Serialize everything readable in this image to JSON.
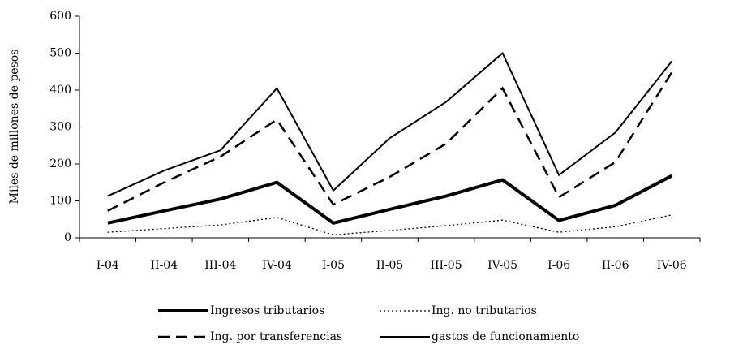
{
  "chart_data": {
    "type": "line",
    "y_label": "Miles de millones de pesos",
    "categories": [
      "I-04",
      "II-04",
      "III-04",
      "IV-04",
      "I-05",
      "II-05",
      "III-05",
      "IV-05",
      "I-06",
      "II-06",
      "IV-06"
    ],
    "series": [
      {
        "name": "Ingresos tributarios",
        "color": "#000000",
        "width": 4,
        "dash": "none",
        "values": [
          40,
          73,
          105,
          150,
          40,
          77,
          113,
          157,
          47,
          88,
          168
        ]
      },
      {
        "name": "Ing. no tributarios",
        "color": "#000000",
        "width": 1.3,
        "dash": "2 3",
        "values": [
          15,
          25,
          35,
          55,
          8,
          20,
          33,
          48,
          15,
          30,
          62
        ]
      },
      {
        "name": "Ing. por transferencias",
        "color": "#000000",
        "width": 2.5,
        "dash": "14 8",
        "values": [
          73,
          150,
          220,
          320,
          90,
          165,
          255,
          405,
          110,
          205,
          448
        ]
      },
      {
        "name": "gastos de funcionamiento",
        "color": "#000000",
        "width": 2,
        "dash": "none",
        "values": [
          113,
          182,
          237,
          405,
          128,
          270,
          368,
          500,
          170,
          285,
          478
        ]
      }
    ],
    "ylim": [
      0,
      600
    ],
    "yticks": [
      0,
      100,
      200,
      300,
      400,
      500,
      600
    ],
    "grid": false
  }
}
